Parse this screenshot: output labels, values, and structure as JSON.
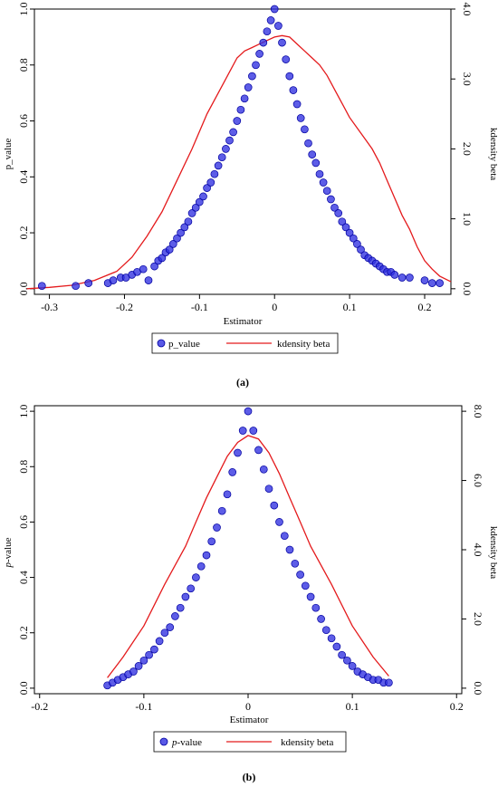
{
  "colors": {
    "points": "#2f2fe0",
    "point_edge": "#0000a0",
    "density": "#e41a1c",
    "axis": "#000000"
  },
  "chart_data": [
    {
      "type": "scatter",
      "panel": "(a)",
      "xlabel": "Estimator",
      "ylabel_left": "p_value",
      "ylabel_right": "kdensity beta",
      "xlim": [
        -0.32,
        0.235
      ],
      "ylim_left": [
        -0.02,
        1.0
      ],
      "ylim_right": [
        -0.08,
        4.0
      ],
      "x_ticks": [
        -0.3,
        -0.2,
        -0.1,
        0,
        0.1,
        0.2
      ],
      "x_tick_labels": [
        "-0.3",
        "-0.2",
        "-0.1",
        "0",
        "0.1",
        "0.2"
      ],
      "y_ticks_left": [
        0,
        0.2,
        0.4,
        0.6,
        0.8,
        1
      ],
      "y_tick_labels_left": [
        "0.0",
        "0.2",
        "0.4",
        "0.6",
        "0.8",
        "1.0"
      ],
      "y_ticks_right": [
        0,
        1,
        2,
        3,
        4
      ],
      "y_tick_labels_right": [
        "0.0",
        "1.0",
        "2.0",
        "3.0",
        "4.0"
      ],
      "legend": [
        "p_value",
        "kdensity beta"
      ],
      "legend_position": "bottom",
      "series": [
        {
          "name": "p_value",
          "kind": "scatter",
          "axis": "left",
          "x": [
            -0.31,
            -0.265,
            -0.248,
            -0.222,
            -0.215,
            -0.205,
            -0.198,
            -0.19,
            -0.183,
            -0.175,
            -0.168,
            -0.16,
            -0.155,
            -0.15,
            -0.145,
            -0.14,
            -0.135,
            -0.13,
            -0.125,
            -0.12,
            -0.115,
            -0.11,
            -0.105,
            -0.1,
            -0.095,
            -0.09,
            -0.085,
            -0.08,
            -0.075,
            -0.07,
            -0.065,
            -0.06,
            -0.055,
            -0.05,
            -0.045,
            -0.04,
            -0.035,
            -0.03,
            -0.025,
            -0.02,
            -0.015,
            -0.01,
            -0.005,
            0,
            0.005,
            0.01,
            0.015,
            0.02,
            0.025,
            0.03,
            0.035,
            0.04,
            0.045,
            0.05,
            0.055,
            0.06,
            0.065,
            0.07,
            0.075,
            0.08,
            0.085,
            0.09,
            0.095,
            0.1,
            0.105,
            0.11,
            0.115,
            0.12,
            0.125,
            0.13,
            0.135,
            0.14,
            0.145,
            0.15,
            0.155,
            0.16,
            0.17,
            0.18,
            0.2,
            0.21,
            0.22
          ],
          "y": [
            0.01,
            0.01,
            0.02,
            0.02,
            0.03,
            0.04,
            0.04,
            0.05,
            0.06,
            0.07,
            0.03,
            0.08,
            0.1,
            0.11,
            0.13,
            0.14,
            0.16,
            0.18,
            0.2,
            0.22,
            0.24,
            0.27,
            0.29,
            0.31,
            0.33,
            0.36,
            0.38,
            0.41,
            0.44,
            0.47,
            0.5,
            0.53,
            0.56,
            0.6,
            0.64,
            0.68,
            0.72,
            0.76,
            0.8,
            0.84,
            0.88,
            0.92,
            0.96,
            1.0,
            0.94,
            0.88,
            0.82,
            0.76,
            0.71,
            0.66,
            0.61,
            0.57,
            0.52,
            0.48,
            0.45,
            0.41,
            0.38,
            0.35,
            0.32,
            0.29,
            0.27,
            0.24,
            0.22,
            0.2,
            0.18,
            0.16,
            0.14,
            0.12,
            0.11,
            0.1,
            0.09,
            0.08,
            0.07,
            0.06,
            0.06,
            0.05,
            0.04,
            0.04,
            0.03,
            0.02,
            0.02
          ]
        },
        {
          "name": "kdensity beta",
          "kind": "line",
          "axis": "right",
          "x": [
            -0.33,
            -0.3,
            -0.27,
            -0.24,
            -0.21,
            -0.19,
            -0.17,
            -0.15,
            -0.13,
            -0.11,
            -0.09,
            -0.07,
            -0.05,
            -0.04,
            -0.03,
            -0.02,
            -0.01,
            0,
            0.01,
            0.02,
            0.03,
            0.04,
            0.05,
            0.06,
            0.07,
            0.08,
            0.09,
            0.1,
            0.11,
            0.12,
            0.13,
            0.14,
            0.15,
            0.16,
            0.17,
            0.18,
            0.19,
            0.2,
            0.21,
            0.22,
            0.235
          ],
          "y": [
            0.0,
            0.02,
            0.05,
            0.12,
            0.25,
            0.45,
            0.75,
            1.1,
            1.55,
            2.0,
            2.5,
            2.9,
            3.3,
            3.4,
            3.45,
            3.5,
            3.55,
            3.6,
            3.62,
            3.6,
            3.5,
            3.4,
            3.3,
            3.2,
            3.05,
            2.85,
            2.65,
            2.45,
            2.3,
            2.15,
            2.0,
            1.8,
            1.55,
            1.3,
            1.05,
            0.85,
            0.6,
            0.4,
            0.28,
            0.18,
            0.1
          ]
        }
      ]
    },
    {
      "type": "scatter",
      "panel": "(b)",
      "xlabel": "Estimator",
      "ylabel_left_italic": "p",
      "ylabel_left_rest": "-value",
      "ylabel_right": "kdensity beta",
      "xlim": [
        -0.205,
        0.205
      ],
      "ylim_left": [
        -0.02,
        1.02
      ],
      "ylim_right": [
        -0.16,
        8.16
      ],
      "x_ticks": [
        -0.2,
        -0.1,
        0,
        0.1,
        0.2
      ],
      "x_tick_labels": [
        "-0.2",
        "-0.1",
        "0",
        "0.1",
        "0.2"
      ],
      "y_ticks_left": [
        0,
        0.2,
        0.4,
        0.6,
        0.8,
        1
      ],
      "y_tick_labels_left": [
        "0.0",
        "0.2",
        "0.4",
        "0.6",
        "0.8",
        "1.0"
      ],
      "y_ticks_right": [
        0,
        2,
        4,
        6,
        8
      ],
      "y_tick_labels_right": [
        "0.0",
        "2.0",
        "4.0",
        "6.0",
        "8.0"
      ],
      "legend_italic": "p",
      "legend": [
        "-value",
        "kdensity beta"
      ],
      "legend_position": "bottom",
      "series": [
        {
          "name": "p-value",
          "kind": "scatter",
          "axis": "left",
          "x": [
            -0.135,
            -0.13,
            -0.125,
            -0.12,
            -0.115,
            -0.11,
            -0.105,
            -0.1,
            -0.095,
            -0.09,
            -0.085,
            -0.08,
            -0.075,
            -0.07,
            -0.065,
            -0.06,
            -0.055,
            -0.05,
            -0.045,
            -0.04,
            -0.035,
            -0.03,
            -0.025,
            -0.02,
            -0.015,
            -0.01,
            -0.005,
            0,
            0.005,
            0.01,
            0.015,
            0.02,
            0.025,
            0.03,
            0.035,
            0.04,
            0.045,
            0.05,
            0.055,
            0.06,
            0.065,
            0.07,
            0.075,
            0.08,
            0.085,
            0.09,
            0.095,
            0.1,
            0.105,
            0.11,
            0.115,
            0.12,
            0.125,
            0.13,
            0.135
          ],
          "y": [
            0.01,
            0.02,
            0.03,
            0.04,
            0.05,
            0.06,
            0.08,
            0.1,
            0.12,
            0.14,
            0.17,
            0.2,
            0.22,
            0.26,
            0.29,
            0.33,
            0.36,
            0.4,
            0.44,
            0.48,
            0.53,
            0.58,
            0.64,
            0.7,
            0.78,
            0.85,
            0.93,
            1.0,
            0.93,
            0.86,
            0.79,
            0.72,
            0.66,
            0.6,
            0.55,
            0.5,
            0.45,
            0.41,
            0.37,
            0.33,
            0.29,
            0.25,
            0.21,
            0.18,
            0.15,
            0.12,
            0.1,
            0.08,
            0.06,
            0.05,
            0.04,
            0.03,
            0.03,
            0.02,
            0.02
          ]
        },
        {
          "name": "kdensity beta",
          "kind": "line",
          "axis": "right",
          "x": [
            -0.135,
            -0.12,
            -0.1,
            -0.08,
            -0.06,
            -0.05,
            -0.04,
            -0.03,
            -0.02,
            -0.01,
            0,
            0.01,
            0.02,
            0.03,
            0.04,
            0.05,
            0.06,
            0.08,
            0.1,
            0.12,
            0.135
          ],
          "y": [
            0.3,
            0.9,
            1.8,
            3.0,
            4.1,
            4.8,
            5.5,
            6.1,
            6.7,
            7.1,
            7.3,
            7.2,
            6.8,
            6.2,
            5.5,
            4.8,
            4.1,
            3.0,
            1.8,
            0.9,
            0.35
          ]
        }
      ]
    }
  ]
}
